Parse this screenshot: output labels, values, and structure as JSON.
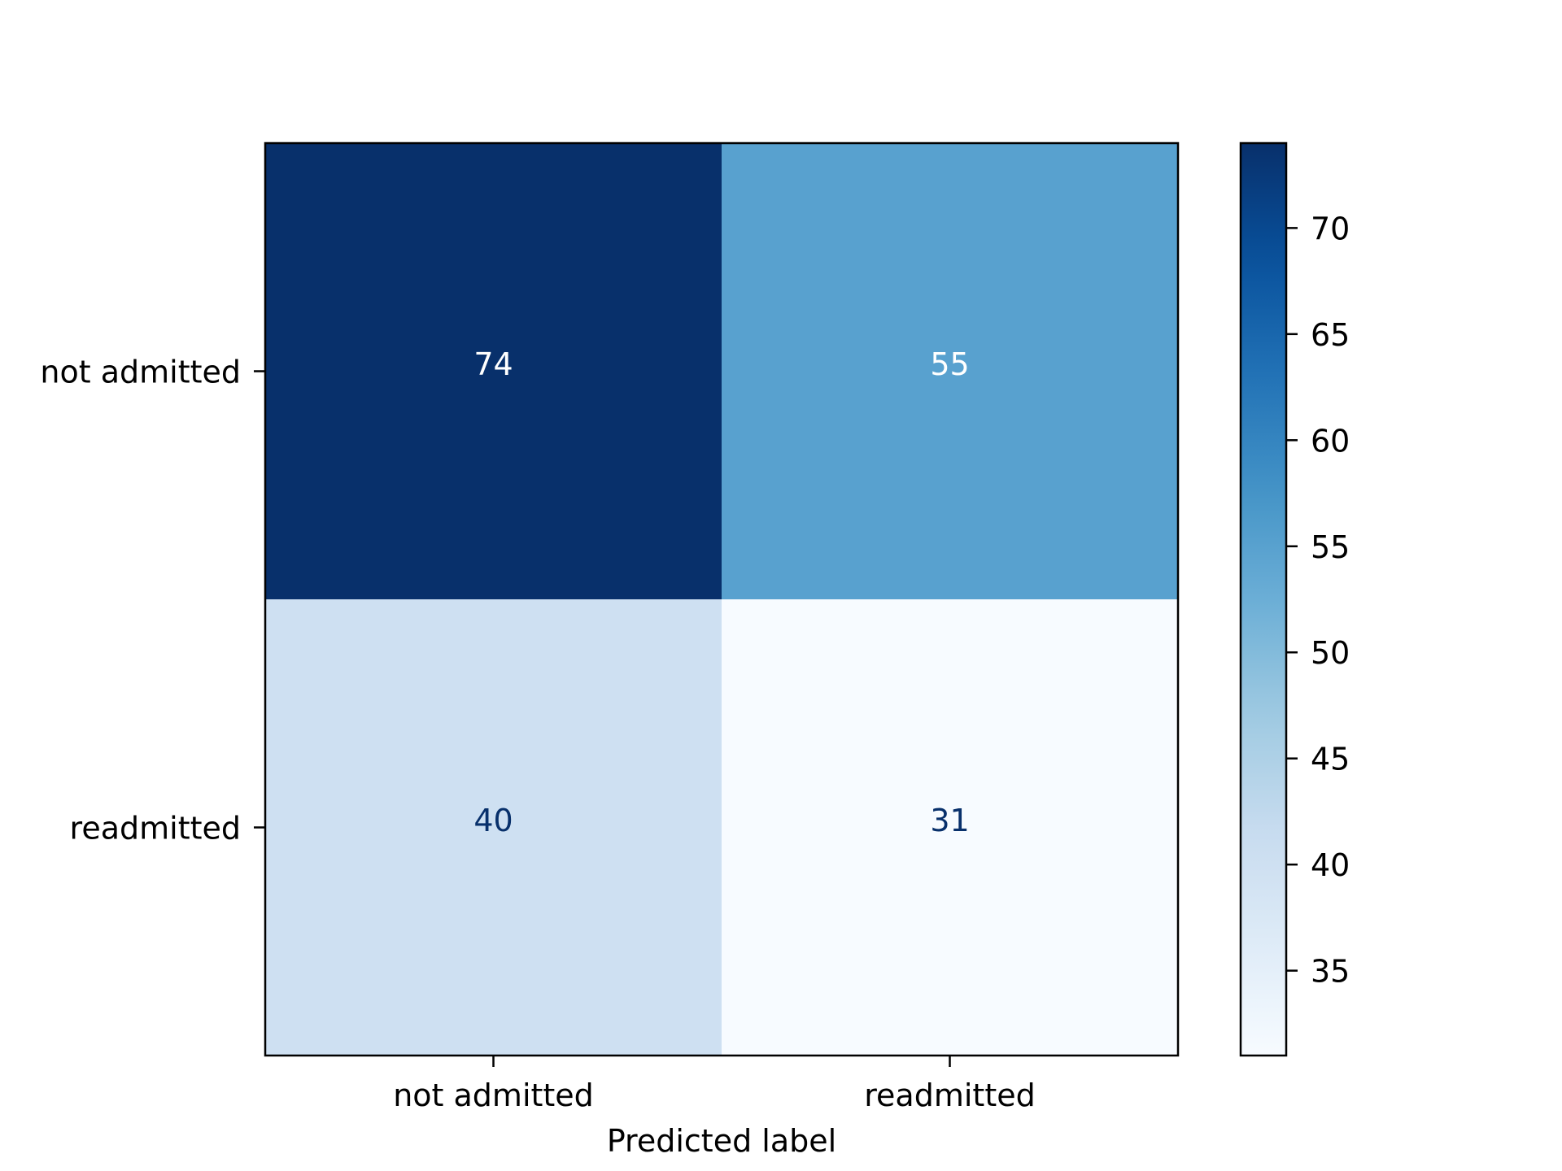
{
  "chart_data": {
    "type": "heatmap",
    "title": "",
    "xlabel": "Predicted label",
    "ylabel": "",
    "x_categories": [
      "not admitted",
      "readmitted"
    ],
    "y_categories": [
      "not admitted",
      "readmitted"
    ],
    "values": [
      [
        74,
        55
      ],
      [
        40,
        31
      ]
    ],
    "value_labels": [
      [
        "74",
        "55"
      ],
      [
        "40",
        "31"
      ]
    ],
    "colormap": "Blues",
    "colorbar": {
      "min": 31,
      "max": 74,
      "ticks": [
        35,
        40,
        45,
        50,
        55,
        60,
        65,
        70
      ],
      "tick_labels": [
        "35",
        "40",
        "45",
        "50",
        "55",
        "60",
        "65",
        "70"
      ]
    },
    "grid": false,
    "colors": {
      "dark_text": "#08306b",
      "light_text": "#ffffff"
    }
  }
}
